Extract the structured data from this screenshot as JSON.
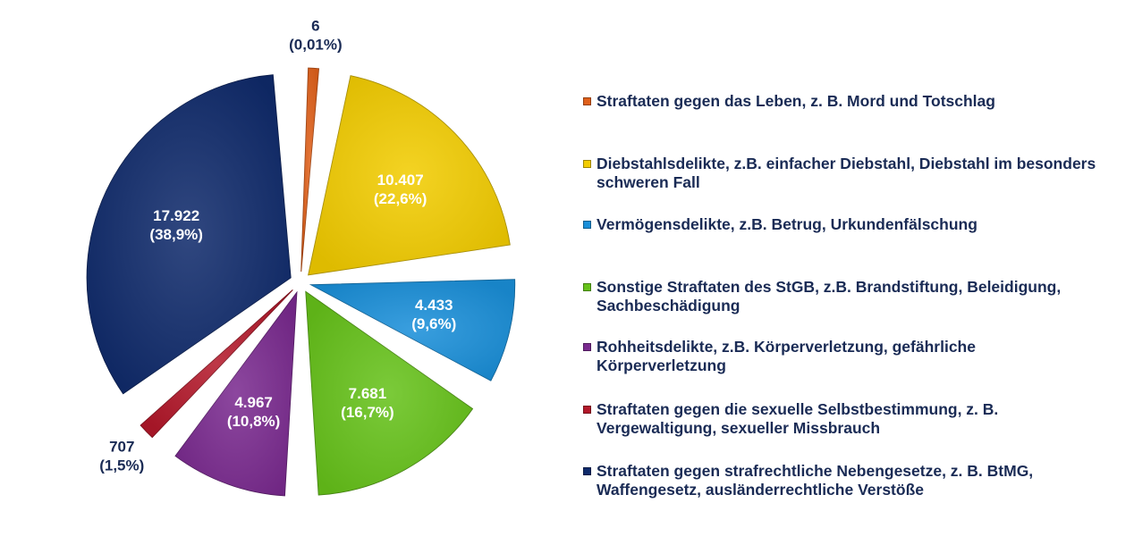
{
  "chart_data": {
    "type": "pie",
    "title": "",
    "slices": [
      {
        "label": "Straftaten gegen das Leben, z. B. Mord und Totschlag",
        "value": 6,
        "value_label": "6",
        "percent_label": "(0,01%)",
        "color": "#e0601a"
      },
      {
        "label": "Diebstahlsdelikte, z.B. einfacher Diebstahl, Diebstahl im besonders schweren Fall",
        "value": 10407,
        "value_label": "10.407",
        "percent_label": "(22,6%)",
        "color": "#f2cc00"
      },
      {
        "label": "Vermögensdelikte, z.B. Betrug, Urkundenfälschung",
        "value": 4433,
        "value_label": "4.433",
        "percent_label": "(9,6%)",
        "color": "#1a8fd9"
      },
      {
        "label": "Sonstige Straftaten des StGB, z.B. Brandstiftung, Beleidigung, Sachbeschädigung",
        "value": 7681,
        "value_label": "7.681",
        "percent_label": "(16,7%)",
        "color": "#66c21a"
      },
      {
        "label": "Rohheitsdelikte, z.B. Körperverletzung, gefährliche Körperverletzung",
        "value": 4967,
        "value_label": "4.967",
        "percent_label": "(10,8%)",
        "color": "#7a2a8f"
      },
      {
        "label": "Straftaten gegen die sexuelle Selbstbestimmung, z. B. Vergewaltigung, sexueller Missbrauch",
        "value": 707,
        "value_label": "707",
        "percent_label": "(1,5%)",
        "color": "#b3182a"
      },
      {
        "label": "Straftaten gegen strafrechtliche Nebengesetze, z. B. BtMG, Waffengesetz, ausländerrechtliche Verstöße",
        "value": 17922,
        "value_label": "17.922",
        "percent_label": "(38,9%)",
        "color": "#0f2a6b"
      }
    ],
    "legend_position": "right"
  }
}
